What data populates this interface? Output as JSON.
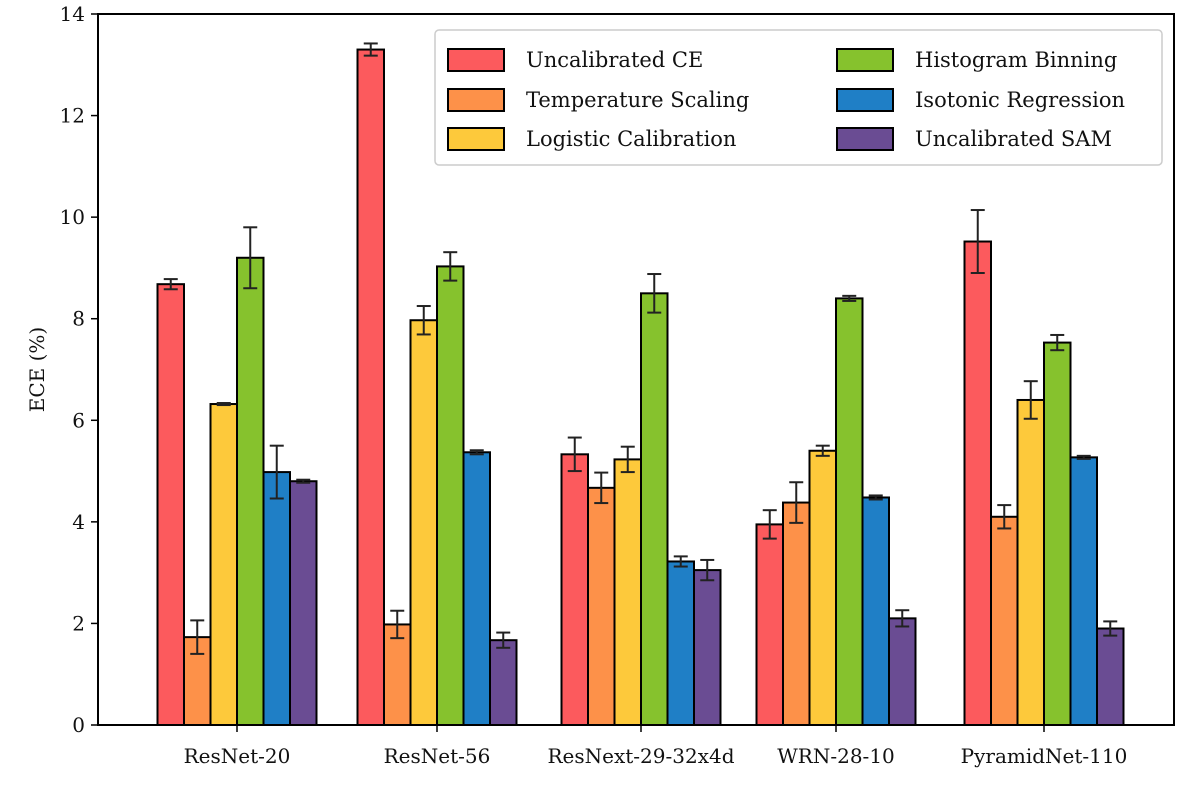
{
  "chart_data": {
    "type": "bar",
    "title": "",
    "xlabel": "",
    "ylabel": "ECE (%)",
    "ylim": [
      0,
      14
    ],
    "yticks": [
      0,
      2,
      4,
      6,
      8,
      10,
      12,
      14
    ],
    "categories": [
      "ResNet-20",
      "ResNet-56",
      "ResNext-29-32x4d",
      "WRN-28-10",
      "PyramidNet-110"
    ],
    "legend_position": "top-right",
    "series": [
      {
        "name": "Uncalibrated CE",
        "color": "#fc5a5d",
        "values": [
          8.68,
          13.3,
          5.33,
          3.95,
          9.52
        ],
        "errors": [
          0.1,
          0.12,
          0.33,
          0.28,
          0.62
        ]
      },
      {
        "name": "Temperature Scaling",
        "color": "#fd9149",
        "values": [
          1.73,
          1.98,
          4.67,
          4.38,
          4.1
        ],
        "errors": [
          0.33,
          0.27,
          0.3,
          0.4,
          0.23
        ]
      },
      {
        "name": "Logistic Calibration",
        "color": "#fdc93b",
        "values": [
          6.32,
          7.97,
          5.23,
          5.4,
          6.4
        ],
        "errors": [
          0.02,
          0.28,
          0.25,
          0.1,
          0.37
        ]
      },
      {
        "name": "Histogram Binning",
        "color": "#86c22d",
        "values": [
          9.2,
          9.03,
          8.5,
          8.4,
          7.53
        ],
        "errors": [
          0.6,
          0.28,
          0.38,
          0.05,
          0.15
        ]
      },
      {
        "name": "Isotonic Regression",
        "color": "#1f7fc6",
        "values": [
          4.98,
          5.37,
          3.22,
          4.48,
          5.27
        ],
        "errors": [
          0.52,
          0.04,
          0.1,
          0.04,
          0.03
        ]
      },
      {
        "name": "Uncalibrated SAM",
        "color": "#6a4c93",
        "values": [
          4.8,
          1.67,
          3.05,
          2.1,
          1.9
        ],
        "errors": [
          0.03,
          0.15,
          0.2,
          0.16,
          0.14
        ]
      }
    ]
  }
}
